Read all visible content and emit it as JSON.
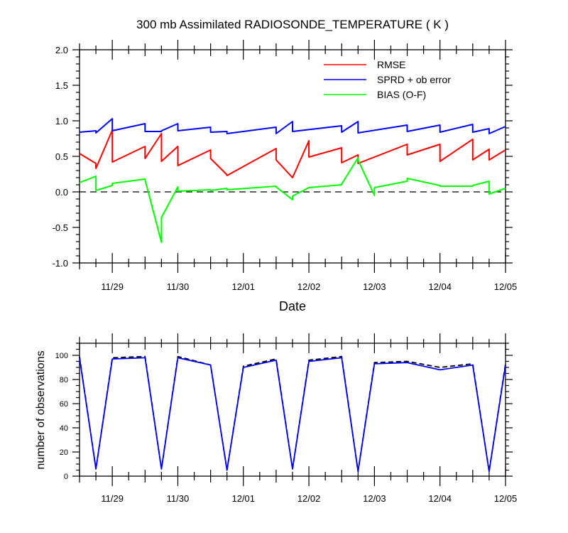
{
  "chart_data": [
    {
      "type": "line",
      "title": "300 mb Assimilated RADIOSONDE_TEMPERATURE ( K )",
      "xlabel": "Date",
      "ylabel": "",
      "x_tick_labels": [
        "11/29",
        "11/30",
        "12/01",
        "12/02",
        "12/03",
        "12/04",
        "12/05"
      ],
      "y_tick_labels": [
        "-1.0",
        "-0.5",
        "0.0",
        "0.5",
        "1.0",
        "1.5",
        "2.0"
      ],
      "xlim": [
        "2011-11-28T12:00",
        "2011-12-05T00:00"
      ],
      "ylim": [
        -1.0,
        2.0
      ],
      "grid": false,
      "legend_position": "top-right",
      "reference_line": {
        "y": 0.0,
        "style": "dashed",
        "color": "#000000"
      },
      "series": [
        {
          "name": "RMSE",
          "color": "#ff0000",
          "x": [
            "2011-11-28T12:00",
            "2011-11-28T18:00",
            "2011-11-28T18:00",
            "2011-11-29T00:00",
            "2011-11-29T00:00",
            "2011-11-29T12:00",
            "2011-11-29T12:00",
            "2011-11-29T18:00",
            "2011-11-29T18:00",
            "2011-11-30T00:00",
            "2011-11-30T00:00",
            "2011-11-30T12:00",
            "2011-11-30T12:00",
            "2011-11-30T18:00",
            "2011-11-30T18:00",
            "2011-12-01T12:00",
            "2011-12-01T12:00",
            "2011-12-01T18:00",
            "2011-12-01T18:00",
            "2011-12-02T00:00",
            "2011-12-02T00:00",
            "2011-12-02T12:00",
            "2011-12-02T12:00",
            "2011-12-02T18:00",
            "2011-12-02T18:00",
            "2011-12-03T12:00",
            "2011-12-03T12:00",
            "2011-12-04T00:00",
            "2011-12-04T00:00",
            "2011-12-04T12:00",
            "2011-12-04T12:00",
            "2011-12-04T18:00",
            "2011-12-04T18:00",
            "2011-12-05T00:00"
          ],
          "y": [
            0.54,
            0.4,
            0.33,
            0.87,
            0.42,
            0.64,
            0.47,
            0.82,
            0.43,
            0.64,
            0.37,
            0.59,
            0.47,
            0.24,
            0.23,
            0.61,
            0.45,
            0.2,
            0.2,
            0.72,
            0.49,
            0.62,
            0.41,
            0.52,
            0.4,
            0.67,
            0.52,
            0.67,
            0.43,
            0.74,
            0.45,
            0.6,
            0.45,
            0.59
          ]
        },
        {
          "name": "SPRD + ob error",
          "color": "#0000ff",
          "x": [
            "2011-11-28T12:00",
            "2011-11-28T18:00",
            "2011-11-28T18:00",
            "2011-11-29T00:00",
            "2011-11-29T00:00",
            "2011-11-29T12:00",
            "2011-11-29T12:00",
            "2011-11-29T18:00",
            "2011-11-29T18:00",
            "2011-11-30T00:00",
            "2011-11-30T00:00",
            "2011-11-30T12:00",
            "2011-11-30T12:00",
            "2011-11-30T18:00",
            "2011-11-30T18:00",
            "2011-12-01T12:00",
            "2011-12-01T12:00",
            "2011-12-01T18:00",
            "2011-12-01T18:00",
            "2011-12-02T12:00",
            "2011-12-02T12:00",
            "2011-12-02T18:00",
            "2011-12-02T18:00",
            "2011-12-03T12:00",
            "2011-12-03T12:00",
            "2011-12-04T00:00",
            "2011-12-04T00:00",
            "2011-12-04T12:00",
            "2011-12-04T12:00",
            "2011-12-04T18:00",
            "2011-12-04T18:00",
            "2011-12-05T00:00"
          ],
          "y": [
            0.84,
            0.86,
            0.83,
            1.03,
            0.86,
            0.96,
            0.85,
            0.85,
            0.86,
            0.96,
            0.86,
            0.91,
            0.84,
            0.85,
            0.82,
            0.91,
            0.82,
            0.99,
            0.85,
            0.93,
            0.84,
            0.99,
            0.83,
            0.94,
            0.85,
            0.94,
            0.84,
            0.95,
            0.84,
            0.89,
            0.82,
            0.92
          ]
        },
        {
          "name": "BIAS (O-F)",
          "color": "#00ff00",
          "x": [
            "2011-11-28T12:00",
            "2011-11-28T18:00",
            "2011-11-28T18:00",
            "2011-11-29T00:00",
            "2011-11-29T00:00",
            "2011-11-29T12:00",
            "2011-11-29T12:00",
            "2011-11-29T18:00",
            "2011-11-29T18:00",
            "2011-11-30T00:00",
            "2011-11-30T00:00",
            "2011-11-30T12:00",
            "2011-11-30T12:00",
            "2011-11-30T18:00",
            "2011-11-30T18:00",
            "2011-12-01T12:00",
            "2011-12-01T12:00",
            "2011-12-01T18:00",
            "2011-12-01T18:00",
            "2011-12-02T00:00",
            "2011-12-02T00:00",
            "2011-12-02T12:00",
            "2011-12-02T12:00",
            "2011-12-02T18:00",
            "2011-12-02T18:00",
            "2011-12-03T00:00",
            "2011-12-03T00:00",
            "2011-12-03T12:00",
            "2011-12-03T12:00",
            "2011-12-04T00:00",
            "2011-12-04T00:00",
            "2011-12-04T12:00",
            "2011-12-04T12:00",
            "2011-12-04T18:00",
            "2011-12-04T18:00",
            "2011-12-05T00:00"
          ],
          "y": [
            0.13,
            0.22,
            0.02,
            0.09,
            0.12,
            0.18,
            0.17,
            -0.71,
            -0.36,
            0.07,
            0.01,
            0.03,
            0.02,
            0.05,
            0.03,
            0.08,
            0.07,
            -0.11,
            -0.06,
            0.06,
            0.06,
            0.1,
            0.11,
            0.48,
            0.45,
            -0.05,
            0.06,
            0.15,
            0.19,
            0.09,
            0.08,
            0.08,
            0.09,
            0.15,
            -0.03,
            0.05
          ]
        }
      ]
    },
    {
      "type": "line",
      "title": "",
      "xlabel": "",
      "ylabel": "number of observations",
      "x_tick_labels": [
        "11/29",
        "11/30",
        "12/01",
        "12/02",
        "12/03",
        "12/04",
        "12/05"
      ],
      "y_tick_labels": [
        "0",
        "20",
        "40",
        "60",
        "80",
        "100"
      ],
      "xlim": [
        "2011-11-28T12:00",
        "2011-12-05T00:00"
      ],
      "ylim": [
        0,
        110
      ],
      "grid": false,
      "series": [
        {
          "color": "#000000",
          "style": "dashed",
          "x": [
            "2011-11-28T12:00",
            "2011-11-28T18:00",
            "2011-11-29T00:00",
            "2011-11-29T12:00",
            "2011-11-29T18:00",
            "2011-11-30T00:00",
            "2011-11-30T12:00",
            "2011-11-30T18:00",
            "2011-12-01T00:00",
            "2011-12-01T12:00",
            "2011-12-01T18:00",
            "2011-12-02T00:00",
            "2011-12-02T12:00",
            "2011-12-02T18:00",
            "2011-12-03T00:00",
            "2011-12-03T12:00",
            "2011-12-04T00:00",
            "2011-12-04T12:00",
            "2011-12-04T18:00",
            "2011-12-05T00:00"
          ],
          "y": [
            99,
            6,
            98,
            99,
            6,
            99,
            92,
            5,
            91,
            97,
            6,
            96,
            99,
            4,
            94,
            95,
            90,
            93,
            4,
            93
          ]
        },
        {
          "color": "#0000ff",
          "style": "solid",
          "x": [
            "2011-11-28T12:00",
            "2011-11-28T18:00",
            "2011-11-29T00:00",
            "2011-11-29T12:00",
            "2011-11-29T18:00",
            "2011-11-30T00:00",
            "2011-11-30T12:00",
            "2011-11-30T18:00",
            "2011-12-01T00:00",
            "2011-12-01T12:00",
            "2011-12-01T18:00",
            "2011-12-02T00:00",
            "2011-12-02T12:00",
            "2011-12-02T18:00",
            "2011-12-03T00:00",
            "2011-12-03T12:00",
            "2011-12-04T00:00",
            "2011-12-04T12:00",
            "2011-12-04T18:00",
            "2011-12-05T00:00"
          ],
          "y": [
            98,
            6,
            97,
            98,
            6,
            98,
            92,
            5,
            90,
            96,
            6,
            95,
            98,
            4,
            93,
            94,
            88,
            92,
            4,
            92
          ]
        }
      ]
    }
  ]
}
